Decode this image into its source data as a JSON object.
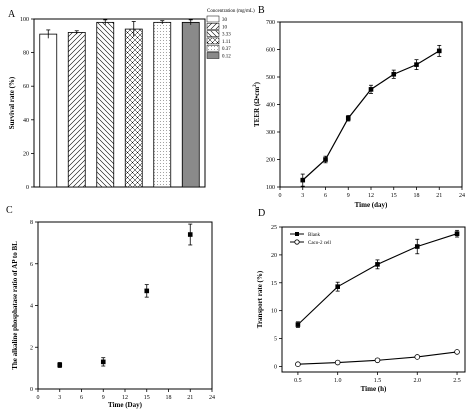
{
  "chart_data": [
    {
      "panel": "A",
      "type": "bar",
      "ylabel": "Survival rate (%)",
      "ylim": [
        0,
        100
      ],
      "yticks": [
        0,
        20,
        40,
        60,
        80,
        100
      ],
      "legend_title": "Concentration (mg/mL)",
      "legend_position": "top-right",
      "categories": [
        "30",
        "10",
        "3.33",
        "1.11",
        "0.37",
        "0.12"
      ],
      "values": [
        91,
        92,
        98,
        94,
        98,
        98
      ],
      "errors": [
        2.5,
        1,
        1.5,
        4.5,
        1,
        1.5
      ],
      "patterns": [
        "blank",
        "diagonal-right",
        "diagonal-left",
        "crosshatch",
        "dots",
        "dense-dots"
      ]
    },
    {
      "panel": "B",
      "type": "line",
      "xlabel": "Time (day)",
      "ylabel_main": "TEER (Ω•cm",
      "ylabel_sup": "2",
      "ylabel_end": ")",
      "xlim": [
        0,
        24
      ],
      "ylim": [
        100,
        700
      ],
      "xticks": [
        0,
        3,
        6,
        9,
        12,
        15,
        18,
        21,
        24
      ],
      "yticks": [
        100,
        200,
        300,
        400,
        500,
        600,
        700
      ],
      "x": [
        3,
        6,
        9,
        12,
        15,
        18,
        21
      ],
      "y": [
        125,
        200,
        350,
        455,
        510,
        545,
        595
      ],
      "errors": [
        22,
        12,
        10,
        15,
        15,
        18,
        20
      ]
    },
    {
      "panel": "C",
      "type": "scatter",
      "xlabel": "Time (Day)",
      "ylabel": "The alkaline phosphatase ratio of AP to BL",
      "xlim": [
        0,
        24
      ],
      "ylim": [
        0,
        8
      ],
      "xticks": [
        0,
        3,
        6,
        9,
        12,
        15,
        18,
        21,
        24
      ],
      "yticks": [
        0,
        2,
        4,
        6,
        8
      ],
      "x": [
        3,
        9,
        15,
        21
      ],
      "y": [
        1.15,
        1.3,
        4.7,
        7.4
      ],
      "errors": [
        0.12,
        0.2,
        0.3,
        0.5
      ]
    },
    {
      "panel": "D",
      "type": "line",
      "xlabel": "Time (h)",
      "ylabel": "Transport rate (%)",
      "xlim": [
        0.3,
        2.6
      ],
      "ylim": [
        -1,
        25
      ],
      "xticks": [
        0.5,
        1.0,
        1.5,
        2.0,
        2.5
      ],
      "xtick_labels": [
        "0.5",
        "1.0",
        "1.5",
        "2.0",
        "2.5"
      ],
      "yticks": [
        0,
        5,
        10,
        15,
        20,
        25
      ],
      "legend_position": "top-left",
      "x": [
        0.5,
        1.0,
        1.5,
        2.0,
        2.5
      ],
      "series": [
        {
          "name": "Blank",
          "marker": "filled-square",
          "values": [
            7.5,
            14.3,
            18.3,
            21.5,
            23.8
          ],
          "errors": [
            0.5,
            0.8,
            0.8,
            1.3,
            0.6
          ]
        },
        {
          "name": "Caco-2 cell",
          "marker": "open-circle",
          "values": [
            0.4,
            0.7,
            1.1,
            1.7,
            2.6
          ],
          "errors": [
            0.1,
            0.1,
            0.1,
            0.15,
            0.15
          ]
        }
      ]
    }
  ]
}
